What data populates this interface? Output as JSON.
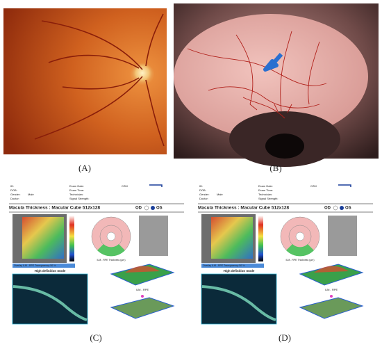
{
  "panels": [
    {
      "label": "(A)"
    },
    {
      "label": "(B)"
    },
    {
      "label": "(C)",
      "report": {
        "fields": [
          "ID:",
          "DOB:",
          "Gender:",
          "Doctor:",
          "Exam Date:",
          "Exam Time:",
          "Technician:",
          "Signal Strength:"
        ],
        "gender": "Male",
        "device": "CZM",
        "title": "Macula Thickness : Macular Cube 512x128",
        "od": "OD",
        "os": "OS",
        "overlay": "Overlay ILM - RPE  Transparency 50 %",
        "thickness": "ILM - RPE Thickness (µm)",
        "mode": "High definition mode",
        "map_label": "ILM - RPE"
      }
    },
    {
      "label": "(D)",
      "report": {
        "fields": [
          "ID:",
          "DOB:",
          "Gender:",
          "Doctor:",
          "Exam Date:",
          "Exam Time:",
          "Technician:",
          "Signal Strength:"
        ],
        "gender": "Male",
        "device": "CZM",
        "title": "Macula Thickness : Macular Cube 512x128",
        "od": "OD",
        "os": "OS",
        "overlay": "Overlay ILM - RPE  Transparency 50 %",
        "thickness": "ILM - RPE Thickness (µm)",
        "mode": "High definition mode",
        "map_label": "ILM - RPE"
      }
    }
  ]
}
